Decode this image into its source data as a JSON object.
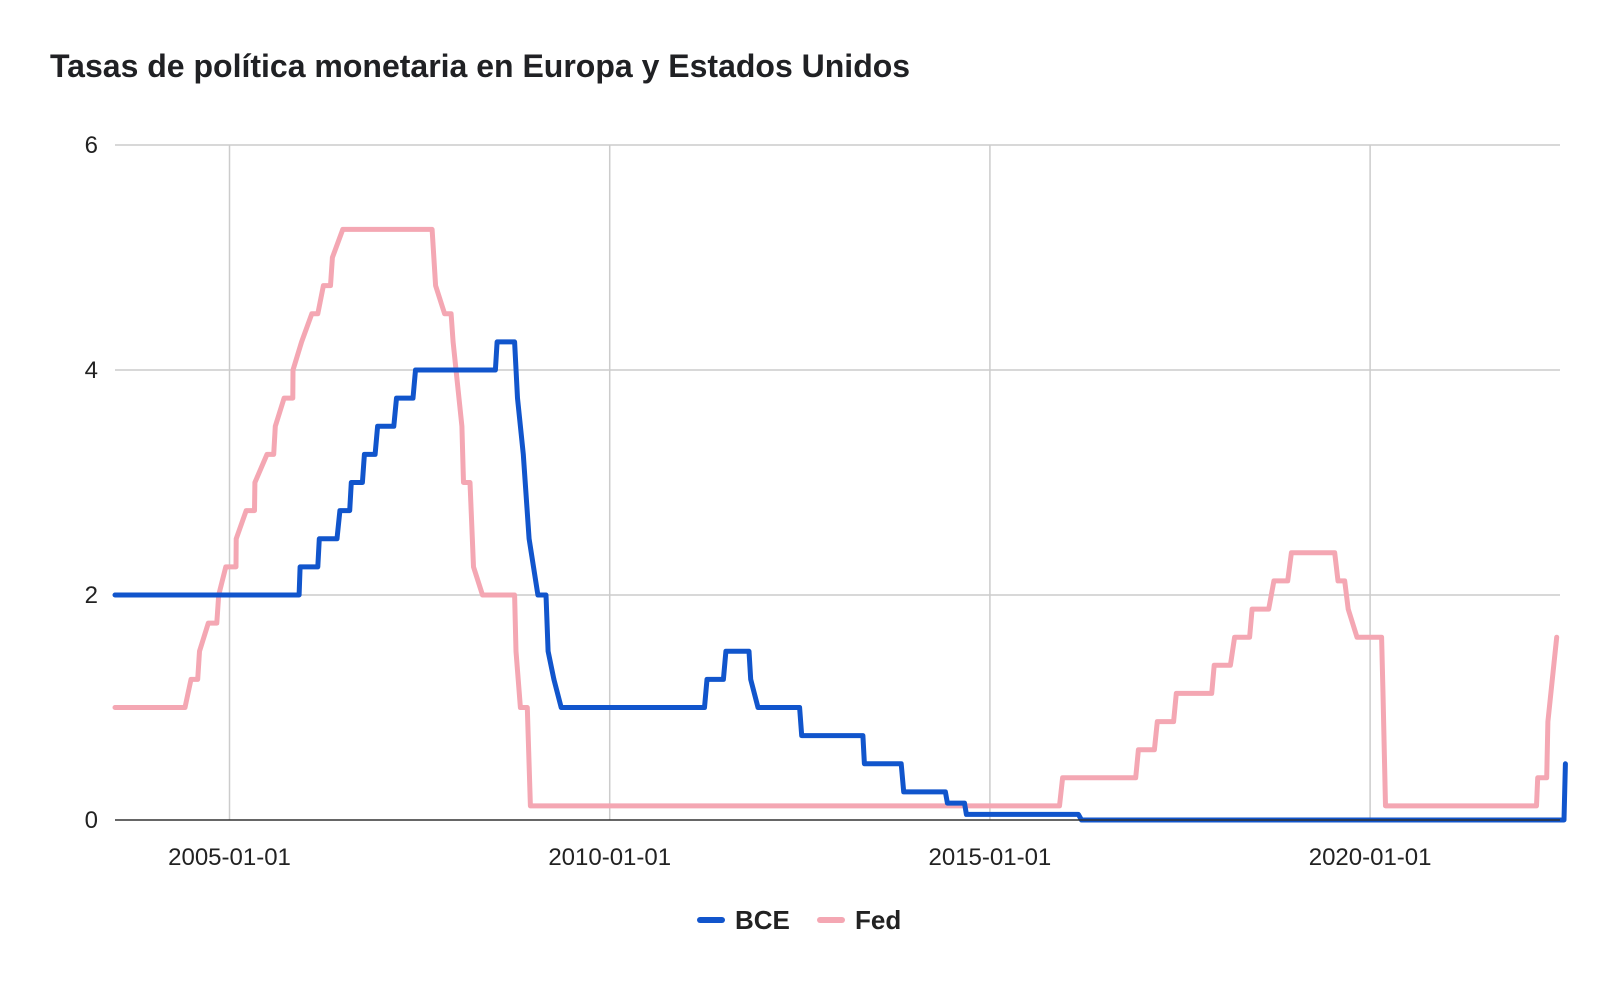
{
  "chart_data": {
    "type": "line",
    "title": "Tasas de política monetaria en Europa y Estados Unidos",
    "xlabel": "",
    "ylabel": "",
    "xlim": [
      "2003-07-01",
      "2022-07-01"
    ],
    "ylim": [
      0,
      6
    ],
    "y_ticks": [
      0,
      2,
      4,
      6
    ],
    "x_ticks": [
      "2005-01-01",
      "2010-01-01",
      "2015-01-01",
      "2020-01-01"
    ],
    "grid": true,
    "legend_position": "bottom",
    "series": [
      {
        "name": "BCE",
        "color": "#1155cc",
        "points": [
          [
            "2003-07-01",
            2.0
          ],
          [
            "2005-12-01",
            2.0
          ],
          [
            "2005-12-06",
            2.25
          ],
          [
            "2006-03-01",
            2.25
          ],
          [
            "2006-03-08",
            2.5
          ],
          [
            "2006-06-01",
            2.5
          ],
          [
            "2006-06-15",
            2.75
          ],
          [
            "2006-08-01",
            2.75
          ],
          [
            "2006-08-09",
            3.0
          ],
          [
            "2006-10-01",
            3.0
          ],
          [
            "2006-10-11",
            3.25
          ],
          [
            "2006-12-01",
            3.25
          ],
          [
            "2006-12-13",
            3.5
          ],
          [
            "2007-03-01",
            3.5
          ],
          [
            "2007-03-14",
            3.75
          ],
          [
            "2007-06-01",
            3.75
          ],
          [
            "2007-06-13",
            4.0
          ],
          [
            "2008-07-01",
            4.0
          ],
          [
            "2008-07-09",
            4.25
          ],
          [
            "2008-10-01",
            4.25
          ],
          [
            "2008-10-15",
            3.75
          ],
          [
            "2008-11-12",
            3.25
          ],
          [
            "2008-12-10",
            2.5
          ],
          [
            "2009-01-21",
            2.0
          ],
          [
            "2009-03-01",
            2.0
          ],
          [
            "2009-03-11",
            1.5
          ],
          [
            "2009-04-08",
            1.25
          ],
          [
            "2009-05-13",
            1.0
          ],
          [
            "2011-04-01",
            1.0
          ],
          [
            "2011-04-13",
            1.25
          ],
          [
            "2011-07-01",
            1.25
          ],
          [
            "2011-07-13",
            1.5
          ],
          [
            "2011-11-01",
            1.5
          ],
          [
            "2011-11-09",
            1.25
          ],
          [
            "2011-12-14",
            1.0
          ],
          [
            "2012-07-01",
            1.0
          ],
          [
            "2012-07-11",
            0.75
          ],
          [
            "2013-05-01",
            0.75
          ],
          [
            "2013-05-08",
            0.5
          ],
          [
            "2013-11-01",
            0.5
          ],
          [
            "2013-11-13",
            0.25
          ],
          [
            "2014-06-01",
            0.25
          ],
          [
            "2014-06-11",
            0.15
          ],
          [
            "2014-09-01",
            0.15
          ],
          [
            "2014-09-10",
            0.05
          ],
          [
            "2016-03-01",
            0.05
          ],
          [
            "2016-03-16",
            0.0
          ],
          [
            "2022-07-20",
            0.0
          ],
          [
            "2022-07-27",
            0.5
          ]
        ]
      },
      {
        "name": "Fed",
        "color": "#f4a7b3",
        "points": [
          [
            "2003-07-01",
            1.0
          ],
          [
            "2004-06-01",
            1.0
          ],
          [
            "2004-06-30",
            1.25
          ],
          [
            "2004-08-01",
            1.25
          ],
          [
            "2004-08-10",
            1.5
          ],
          [
            "2004-09-21",
            1.75
          ],
          [
            "2004-11-01",
            1.75
          ],
          [
            "2004-11-10",
            2.0
          ],
          [
            "2004-12-14",
            2.25
          ],
          [
            "2005-02-01",
            2.25
          ],
          [
            "2005-02-02",
            2.5
          ],
          [
            "2005-03-22",
            2.75
          ],
          [
            "2005-05-01",
            2.75
          ],
          [
            "2005-05-03",
            3.0
          ],
          [
            "2005-06-30",
            3.25
          ],
          [
            "2005-08-01",
            3.25
          ],
          [
            "2005-08-09",
            3.5
          ],
          [
            "2005-09-20",
            3.75
          ],
          [
            "2005-11-01",
            3.75
          ],
          [
            "2005-11-02",
            4.0
          ],
          [
            "2005-12-13",
            4.25
          ],
          [
            "2006-01-31",
            4.5
          ],
          [
            "2006-03-01",
            4.5
          ],
          [
            "2006-03-28",
            4.75
          ],
          [
            "2006-05-01",
            4.75
          ],
          [
            "2006-05-10",
            5.0
          ],
          [
            "2006-06-29",
            5.25
          ],
          [
            "2007-09-01",
            5.25
          ],
          [
            "2007-09-18",
            4.75
          ],
          [
            "2007-10-31",
            4.5
          ],
          [
            "2007-12-01",
            4.5
          ],
          [
            "2007-12-11",
            4.25
          ],
          [
            "2008-01-22",
            3.5
          ],
          [
            "2008-01-30",
            3.0
          ],
          [
            "2008-03-01",
            3.0
          ],
          [
            "2008-03-18",
            2.25
          ],
          [
            "2008-04-30",
            2.0
          ],
          [
            "2008-10-01",
            2.0
          ],
          [
            "2008-10-08",
            1.5
          ],
          [
            "2008-10-29",
            1.0
          ],
          [
            "2008-12-01",
            1.0
          ],
          [
            "2008-12-16",
            0.125
          ],
          [
            "2015-12-01",
            0.125
          ],
          [
            "2015-12-16",
            0.375
          ],
          [
            "2016-12-01",
            0.375
          ],
          [
            "2016-12-14",
            0.625
          ],
          [
            "2017-03-01",
            0.625
          ],
          [
            "2017-03-15",
            0.875
          ],
          [
            "2017-06-01",
            0.875
          ],
          [
            "2017-06-14",
            1.125
          ],
          [
            "2017-12-01",
            1.125
          ],
          [
            "2017-12-13",
            1.375
          ],
          [
            "2018-03-01",
            1.375
          ],
          [
            "2018-03-21",
            1.625
          ],
          [
            "2018-06-01",
            1.625
          ],
          [
            "2018-06-13",
            1.875
          ],
          [
            "2018-09-01",
            1.875
          ],
          [
            "2018-09-26",
            2.125
          ],
          [
            "2018-12-01",
            2.125
          ],
          [
            "2018-12-19",
            2.375
          ],
          [
            "2019-07-15",
            2.375
          ],
          [
            "2019-07-31",
            2.125
          ],
          [
            "2019-09-01",
            2.125
          ],
          [
            "2019-09-18",
            1.875
          ],
          [
            "2019-10-30",
            1.625
          ],
          [
            "2020-02-25",
            1.625
          ],
          [
            "2020-03-03",
            1.125
          ],
          [
            "2020-03-15",
            0.125
          ],
          [
            "2022-03-10",
            0.125
          ],
          [
            "2022-03-16",
            0.375
          ],
          [
            "2022-04-28",
            0.375
          ],
          [
            "2022-05-04",
            0.875
          ],
          [
            "2022-06-15",
            1.625
          ]
        ]
      }
    ]
  }
}
